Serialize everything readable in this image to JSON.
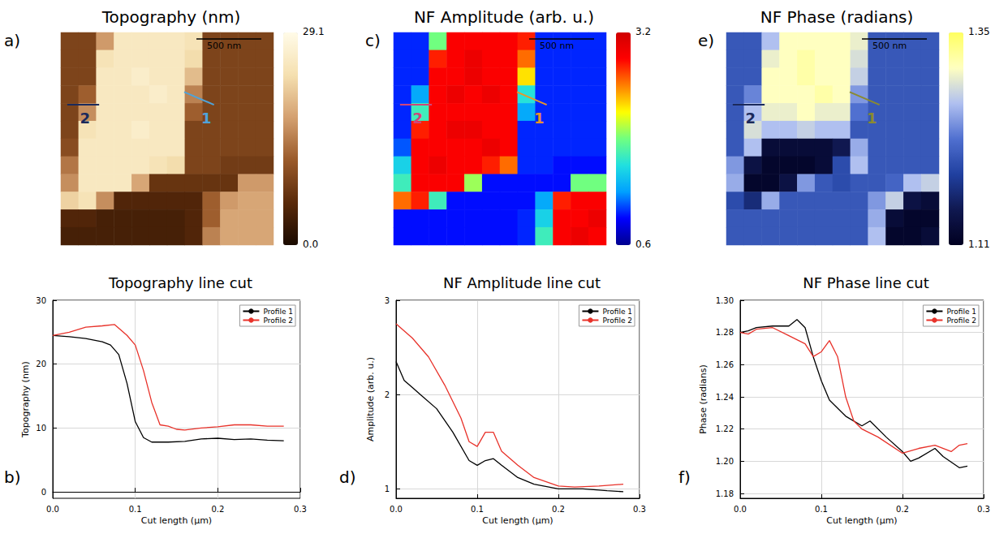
{
  "chart_data": [
    {
      "type": "heatmap",
      "panel": "a)",
      "title": "Topography (nm)",
      "tick_labels": false,
      "scale_bar": "500 nm",
      "cut_markers": [
        {
          "label": "1",
          "color": "#4fa3d9"
        },
        {
          "label": "2",
          "color": "#1b2a5c"
        }
      ],
      "colorbar": {
        "range": [
          0,
          29.1
        ],
        "ticks": [
          {
            "value": 0,
            "label": "0.0"
          },
          29.1
        ]
      },
      "cells": [
        [
          9,
          9,
          17,
          25,
          25,
          25,
          25,
          24,
          9,
          9,
          9,
          9
        ],
        [
          9,
          9,
          24,
          25,
          25,
          25,
          25,
          23,
          9,
          9,
          9,
          9
        ],
        [
          9,
          9,
          25,
          25,
          26,
          25,
          25,
          20,
          9,
          9,
          9,
          9
        ],
        [
          9,
          12,
          25,
          25,
          25,
          26,
          25,
          15,
          9,
          9,
          9,
          9
        ],
        [
          9,
          16,
          25,
          25,
          25,
          25,
          25,
          12,
          9,
          9,
          9,
          9
        ],
        [
          9,
          24,
          25,
          25,
          26,
          25,
          25,
          9,
          9,
          9,
          9,
          9
        ],
        [
          10,
          25,
          25,
          25,
          25,
          25,
          25,
          9,
          9,
          9,
          9,
          9
        ],
        [
          14,
          25,
          25,
          25,
          25,
          24,
          23,
          9,
          9,
          8,
          8,
          8
        ],
        [
          16,
          25,
          25,
          25,
          18,
          7,
          7,
          7,
          7,
          7,
          17,
          17
        ],
        [
          22,
          24,
          16,
          5,
          5,
          5,
          5,
          5,
          12,
          17,
          18,
          18
        ],
        [
          5,
          5,
          4,
          4,
          4,
          4,
          4,
          5,
          12,
          18,
          18,
          18
        ],
        [
          4,
          4,
          4,
          4,
          4,
          4,
          4,
          5,
          15,
          18,
          18,
          18
        ]
      ]
    },
    {
      "type": "heatmap",
      "panel": "c)",
      "title": "NF Amplitude (arb. u.)",
      "tick_labels": false,
      "scale_bar": "500 nm",
      "cut_markers": [
        {
          "label": "1",
          "color": "#e8962a"
        },
        {
          "label": "2",
          "color": "#d0457a"
        }
      ],
      "colorbar": {
        "range": [
          0.6,
          3.2
        ],
        "ticks": [
          0.6,
          3.2
        ]
      },
      "cells": [
        [
          1.0,
          1.0,
          1.9,
          2.9,
          2.9,
          2.9,
          2.9,
          2.8,
          1.0,
          1.0,
          1.0,
          1.0
        ],
        [
          1.0,
          1.0,
          2.8,
          2.9,
          3.0,
          2.9,
          2.9,
          2.6,
          1.0,
          1.0,
          1.0,
          1.0
        ],
        [
          1.0,
          1.0,
          2.9,
          2.9,
          3.0,
          2.9,
          2.9,
          2.3,
          1.0,
          1.0,
          1.0,
          1.0
        ],
        [
          1.0,
          1.3,
          2.9,
          3.0,
          2.9,
          3.0,
          2.9,
          1.6,
          1.0,
          1.0,
          1.0,
          1.0
        ],
        [
          1.0,
          1.7,
          2.9,
          2.9,
          2.9,
          2.9,
          2.9,
          1.3,
          1.0,
          1.0,
          1.0,
          1.0
        ],
        [
          1.0,
          2.8,
          2.9,
          3.0,
          3.0,
          2.9,
          2.9,
          1.0,
          1.0,
          1.0,
          1.0,
          1.0
        ],
        [
          1.1,
          2.9,
          2.9,
          2.9,
          2.9,
          3.0,
          2.9,
          1.0,
          1.0,
          1.0,
          1.0,
          1.0
        ],
        [
          1.5,
          2.9,
          3.0,
          2.9,
          2.9,
          2.8,
          2.6,
          1.0,
          1.0,
          0.95,
          0.95,
          0.95
        ],
        [
          1.7,
          2.9,
          2.9,
          2.9,
          2.0,
          0.95,
          0.95,
          0.95,
          0.95,
          0.95,
          1.9,
          1.9
        ],
        [
          2.6,
          2.8,
          1.7,
          0.95,
          0.95,
          0.95,
          0.95,
          0.95,
          1.3,
          2.8,
          2.9,
          2.9
        ],
        [
          0.95,
          0.95,
          0.95,
          0.95,
          0.95,
          0.95,
          0.95,
          1.0,
          1.5,
          2.9,
          2.9,
          3.0
        ],
        [
          0.95,
          0.95,
          0.95,
          0.95,
          0.95,
          0.95,
          0.95,
          1.0,
          1.7,
          2.9,
          3.0,
          2.9
        ]
      ]
    },
    {
      "type": "heatmap",
      "panel": "e)",
      "title": "NF Phase (radians)",
      "tick_labels": false,
      "scale_bar": "500 nm",
      "cut_markers": [
        {
          "label": "1",
          "color": "#8a8a30"
        },
        {
          "label": "2",
          "color": "#1b2a5c"
        }
      ],
      "colorbar": {
        "range": [
          1.11,
          1.35
        ],
        "ticks": [
          1.11,
          1.35
        ]
      },
      "cells": [
        [
          1.21,
          1.21,
          1.27,
          1.31,
          1.31,
          1.31,
          1.31,
          1.3,
          1.21,
          1.21,
          1.21,
          1.21
        ],
        [
          1.21,
          1.21,
          1.3,
          1.31,
          1.32,
          1.31,
          1.31,
          1.29,
          1.21,
          1.21,
          1.21,
          1.21
        ],
        [
          1.21,
          1.21,
          1.31,
          1.31,
          1.32,
          1.31,
          1.31,
          1.28,
          1.21,
          1.21,
          1.21,
          1.21
        ],
        [
          1.21,
          1.24,
          1.31,
          1.31,
          1.31,
          1.32,
          1.31,
          1.25,
          1.21,
          1.21,
          1.21,
          1.21
        ],
        [
          1.21,
          1.27,
          1.3,
          1.3,
          1.31,
          1.3,
          1.3,
          1.23,
          1.21,
          1.21,
          1.21,
          1.21
        ],
        [
          1.21,
          1.29,
          1.27,
          1.27,
          1.28,
          1.27,
          1.27,
          1.21,
          1.21,
          1.21,
          1.21,
          1.21
        ],
        [
          1.21,
          1.27,
          1.13,
          1.13,
          1.13,
          1.13,
          1.15,
          1.26,
          1.21,
          1.21,
          1.21,
          1.21
        ],
        [
          1.25,
          1.14,
          1.12,
          1.12,
          1.12,
          1.13,
          1.2,
          1.27,
          1.21,
          1.21,
          1.21,
          1.21
        ],
        [
          1.26,
          1.12,
          1.12,
          1.14,
          1.25,
          1.21,
          1.2,
          1.21,
          1.21,
          1.22,
          1.27,
          1.28
        ],
        [
          1.2,
          1.17,
          1.26,
          1.21,
          1.21,
          1.21,
          1.21,
          1.21,
          1.25,
          1.28,
          1.14,
          1.13
        ],
        [
          1.21,
          1.21,
          1.21,
          1.21,
          1.21,
          1.21,
          1.21,
          1.21,
          1.26,
          1.13,
          1.12,
          1.12
        ],
        [
          1.21,
          1.21,
          1.21,
          1.21,
          1.21,
          1.21,
          1.21,
          1.21,
          1.27,
          1.12,
          1.12,
          1.13
        ]
      ]
    },
    {
      "type": "line",
      "panel": "b)",
      "title": "Topography line cut",
      "x_label": "Cut length (µm)",
      "y_label": "Topography (nm)",
      "xlim": [
        0,
        0.3
      ],
      "xticks": [
        {
          "value": 0,
          "label": "0.0"
        },
        0.1,
        0.2,
        0.3
      ],
      "ylim": [
        -1,
        30
      ],
      "yticks": [
        0,
        10,
        20,
        30
      ],
      "grid": true,
      "legend": "upper right",
      "series": [
        {
          "name": "Profile 1",
          "color": "#000000",
          "x": [
            0,
            0.02,
            0.04,
            0.06,
            0.07,
            0.08,
            0.09,
            0.1,
            0.11,
            0.12,
            0.14,
            0.16,
            0.18,
            0.2,
            0.22,
            0.24,
            0.26,
            0.28
          ],
          "values": [
            24.5,
            24.3,
            24,
            23.5,
            23,
            21.5,
            17,
            11,
            8.5,
            7.8,
            7.8,
            7.9,
            8.3,
            8.4,
            8.2,
            8.3,
            8.1,
            8.0
          ]
        },
        {
          "name": "Profile 2",
          "color": "#e8322a",
          "x": [
            0,
            0.02,
            0.04,
            0.06,
            0.075,
            0.09,
            0.1,
            0.11,
            0.12,
            0.13,
            0.14,
            0.15,
            0.16,
            0.18,
            0.2,
            0.22,
            0.24,
            0.26,
            0.28
          ],
          "values": [
            24.5,
            25,
            25.8,
            26,
            26.2,
            24.5,
            23,
            19,
            14,
            10.5,
            10.3,
            9.8,
            9.7,
            10,
            10.2,
            10.5,
            10.5,
            10.3,
            10.3
          ]
        }
      ]
    },
    {
      "type": "line",
      "panel": "d)",
      "title": "NF Amplitude line cut",
      "x_label": "Cut length (µm)",
      "y_label": "Amplitude (arb. u.)",
      "xlim": [
        0,
        0.3
      ],
      "xticks": [
        {
          "value": 0,
          "label": "0.0"
        },
        0.1,
        0.2,
        0.3
      ],
      "ylim": [
        0.9,
        3
      ],
      "yticks": [
        1,
        2,
        3
      ],
      "grid": true,
      "legend": "upper right",
      "series": [
        {
          "name": "Profile 1",
          "color": "#000000",
          "x": [
            0,
            0.01,
            0.03,
            0.05,
            0.07,
            0.09,
            0.1,
            0.11,
            0.12,
            0.13,
            0.15,
            0.17,
            0.2,
            0.23,
            0.26,
            0.28
          ],
          "values": [
            2.35,
            2.15,
            2.0,
            1.85,
            1.6,
            1.3,
            1.25,
            1.3,
            1.32,
            1.25,
            1.12,
            1.05,
            1.0,
            1.0,
            0.98,
            0.97
          ]
        },
        {
          "name": "Profile 2",
          "color": "#e8322a",
          "x": [
            0,
            0.02,
            0.04,
            0.06,
            0.08,
            0.09,
            0.1,
            0.11,
            0.12,
            0.13,
            0.15,
            0.17,
            0.2,
            0.22,
            0.25,
            0.28
          ],
          "values": [
            2.75,
            2.6,
            2.4,
            2.1,
            1.75,
            1.5,
            1.45,
            1.6,
            1.6,
            1.4,
            1.25,
            1.12,
            1.03,
            1.02,
            1.03,
            1.05
          ]
        }
      ]
    },
    {
      "type": "line",
      "panel": "f)",
      "title": "NF Phase line cut",
      "x_label": "Cut length (µm)",
      "y_label": "Phase (radians)",
      "xlim": [
        0,
        0.3
      ],
      "xticks": [
        {
          "value": 0,
          "label": "0.0"
        },
        0.1,
        0.2,
        0.3
      ],
      "ylim": [
        1.177,
        1.3
      ],
      "yticks": [
        1.18,
        {
          "value": 1.2,
          "label": "1.20"
        },
        1.22,
        1.24,
        1.26,
        1.28,
        {
          "value": 1.3,
          "label": "1.30"
        }
      ],
      "grid": true,
      "legend": "upper right",
      "series": [
        {
          "name": "Profile 1",
          "color": "#000000",
          "x": [
            0,
            0.01,
            0.02,
            0.04,
            0.06,
            0.07,
            0.08,
            0.09,
            0.1,
            0.11,
            0.13,
            0.15,
            0.16,
            0.18,
            0.2,
            0.21,
            0.22,
            0.24,
            0.25,
            0.27,
            0.28
          ],
          "values": [
            1.28,
            1.281,
            1.283,
            1.284,
            1.284,
            1.288,
            1.283,
            1.265,
            1.25,
            1.238,
            1.228,
            1.222,
            1.225,
            1.215,
            1.206,
            1.2,
            1.202,
            1.208,
            1.203,
            1.196,
            1.197
          ]
        },
        {
          "name": "Profile 2",
          "color": "#e8322a",
          "x": [
            0,
            0.01,
            0.02,
            0.04,
            0.06,
            0.08,
            0.09,
            0.1,
            0.11,
            0.12,
            0.13,
            0.14,
            0.15,
            0.17,
            0.2,
            0.22,
            0.24,
            0.26,
            0.27,
            0.28
          ],
          "values": [
            1.28,
            1.279,
            1.282,
            1.283,
            1.278,
            1.273,
            1.265,
            1.268,
            1.275,
            1.265,
            1.24,
            1.225,
            1.22,
            1.215,
            1.205,
            1.208,
            1.21,
            1.206,
            1.21,
            1.211
          ]
        }
      ]
    }
  ]
}
